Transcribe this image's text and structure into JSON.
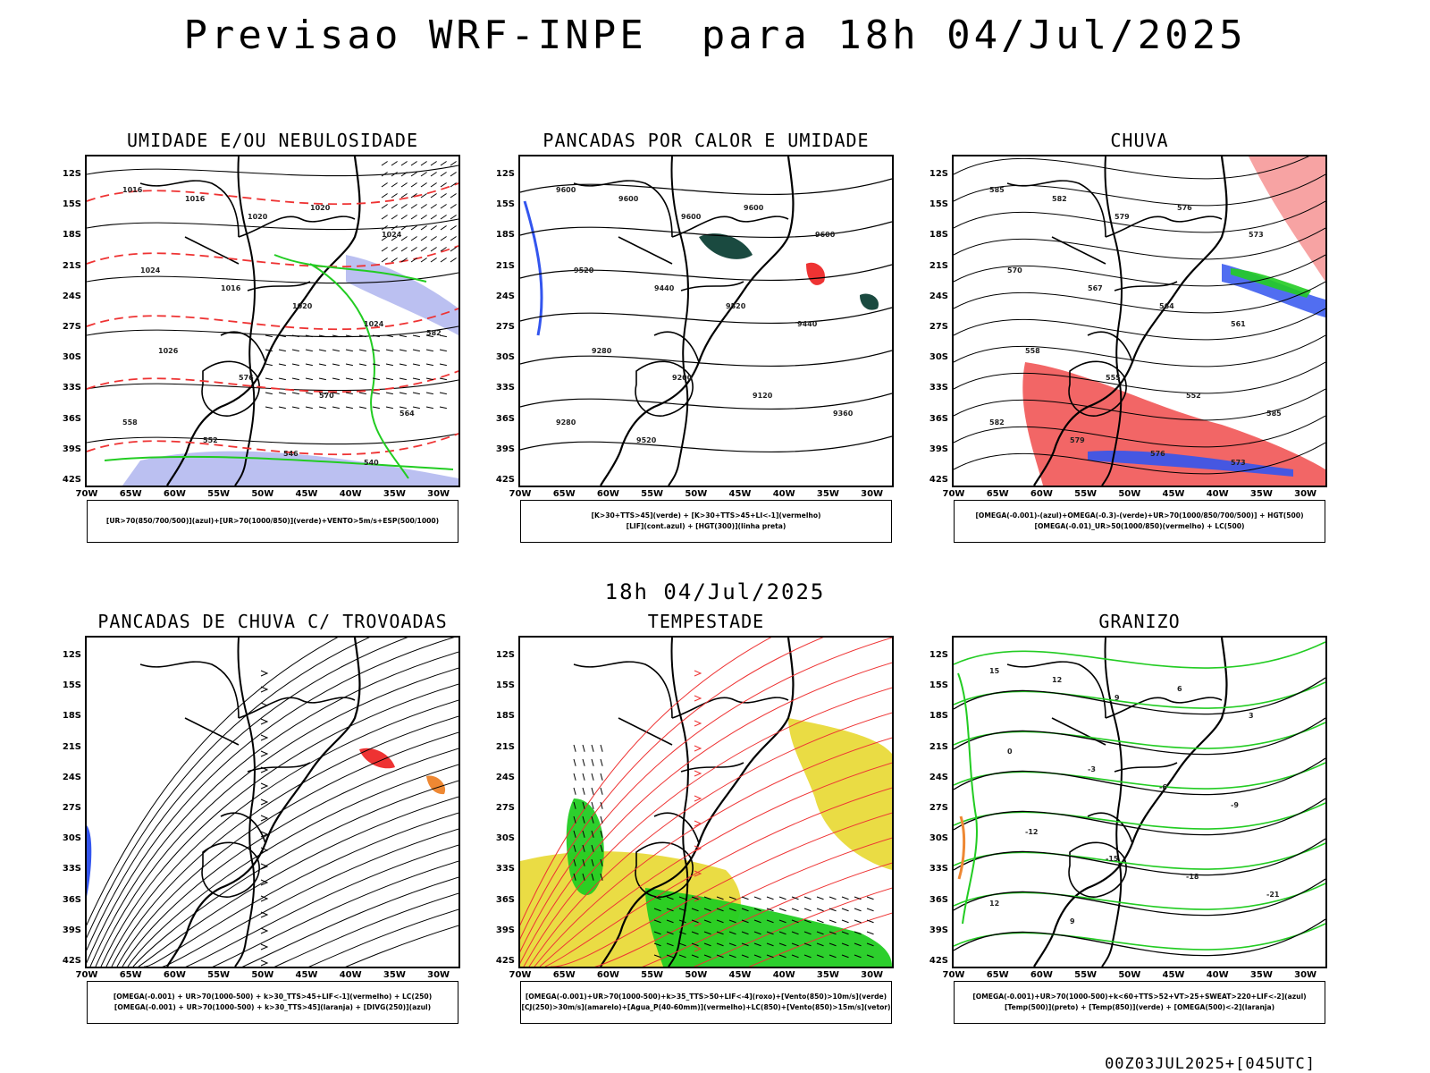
{
  "header": {
    "title": "Previsao WRF-INPE  para 18h 04/Jul/2025"
  },
  "mid_time": "18h 04/Jul/2025",
  "footer": "00Z03JUL2025+[045UTC]",
  "axes": {
    "lat_labels": [
      "12S",
      "15S",
      "18S",
      "21S",
      "24S",
      "27S",
      "30S",
      "33S",
      "36S",
      "39S",
      "42S"
    ],
    "lon_labels": [
      "70W",
      "65W",
      "60W",
      "55W",
      "50W",
      "45W",
      "40W",
      "35W",
      "30W"
    ]
  },
  "colors": {
    "green": "#22cc22",
    "red": "#ee3333",
    "blue": "#3355ee",
    "lavender": "#aab0ee",
    "yellow": "#e8d830",
    "orange": "#ee8833",
    "darkgreen": "#1a4a40"
  },
  "panels": [
    {
      "title": "UMIDADE E/OU NEBULOSIDADE",
      "legend": [
        "[UR>70(850/700/500)](azul)+[UR>70(1000/850)](verde)+VENTO>5m/s+ESP(500/1000)"
      ],
      "contour_labels": [
        "1016",
        "1016",
        "1020",
        "1020",
        "1024",
        "1024",
        "1016",
        "1020",
        "1024",
        "1026",
        "576",
        "570",
        "564",
        "558",
        "552",
        "546",
        "540",
        "582"
      ]
    },
    {
      "title": "PANCADAS POR CALOR E UMIDADE",
      "legend": [
        "[K>30+TTS>45](verde) + [K>30+TTS>45+LI<-1](vermelho)",
        "[LIF](cont.azul) + [HGT(300)](linha preta)"
      ],
      "contour_labels": [
        "9600",
        "9600",
        "9600",
        "9600",
        "9600",
        "9520",
        "9440",
        "9520",
        "9440",
        "9280",
        "9200",
        "9120",
        "9360",
        "9280",
        "9520"
      ]
    },
    {
      "title": "CHUVA",
      "legend": [
        "[OMEGA(-0.001)-(azul)+OMEGA(-0.3)-(verde)+UR>70(1000/850/700/500)] + HGT(500)",
        "[OMEGA(-0.01)_UR>50(1000/850)(vermelho) + LC(500)"
      ],
      "contour_labels": [
        "585",
        "582",
        "579",
        "576",
        "573",
        "570",
        "567",
        "564",
        "561",
        "558",
        "555",
        "552",
        "585",
        "582",
        "579",
        "576",
        "573"
      ]
    },
    {
      "title": "PANCADAS DE CHUVA C/ TROVOADAS",
      "legend": [
        "[OMEGA(-0.001) + UR>70(1000-500) + k>30_TTS>45+LIF<-1](vermelho) + LC(250)",
        "[OMEGA(-0.001) + UR>70(1000-500) + k>30_TTS>45](laranja) + [DIVG(250)](azul)"
      ]
    },
    {
      "title": "TEMPESTADE",
      "legend": [
        "[OMEGA(-0.001)+UR>70(1000-500)+k>35_TTS>50+LIF<-4](roxo)+[Vento(850)>10m/s](verde)",
        "[CJ(250)>30m/s](amarelo)+[Agua_P(40-60mm)](vermelho)+LC(850)+[Vento(850)>15m/s](vetor)"
      ]
    },
    {
      "title": "GRANIZO",
      "legend": [
        "[OMEGA(-0.001)+UR>70(1000-500)+k<60+TTS>52+VT>25+SWEAT>220+LIF<-2](azul)",
        "[Temp(500)](preto) + [Temp(850)](verde) + [OMEGA(500)<-2](laranja)"
      ],
      "contour_labels": [
        "15",
        "12",
        "9",
        "6",
        "3",
        "0",
        "-3",
        "-6",
        "-9",
        "-12",
        "-15",
        "-18",
        "-21",
        "12",
        "9"
      ]
    }
  ]
}
